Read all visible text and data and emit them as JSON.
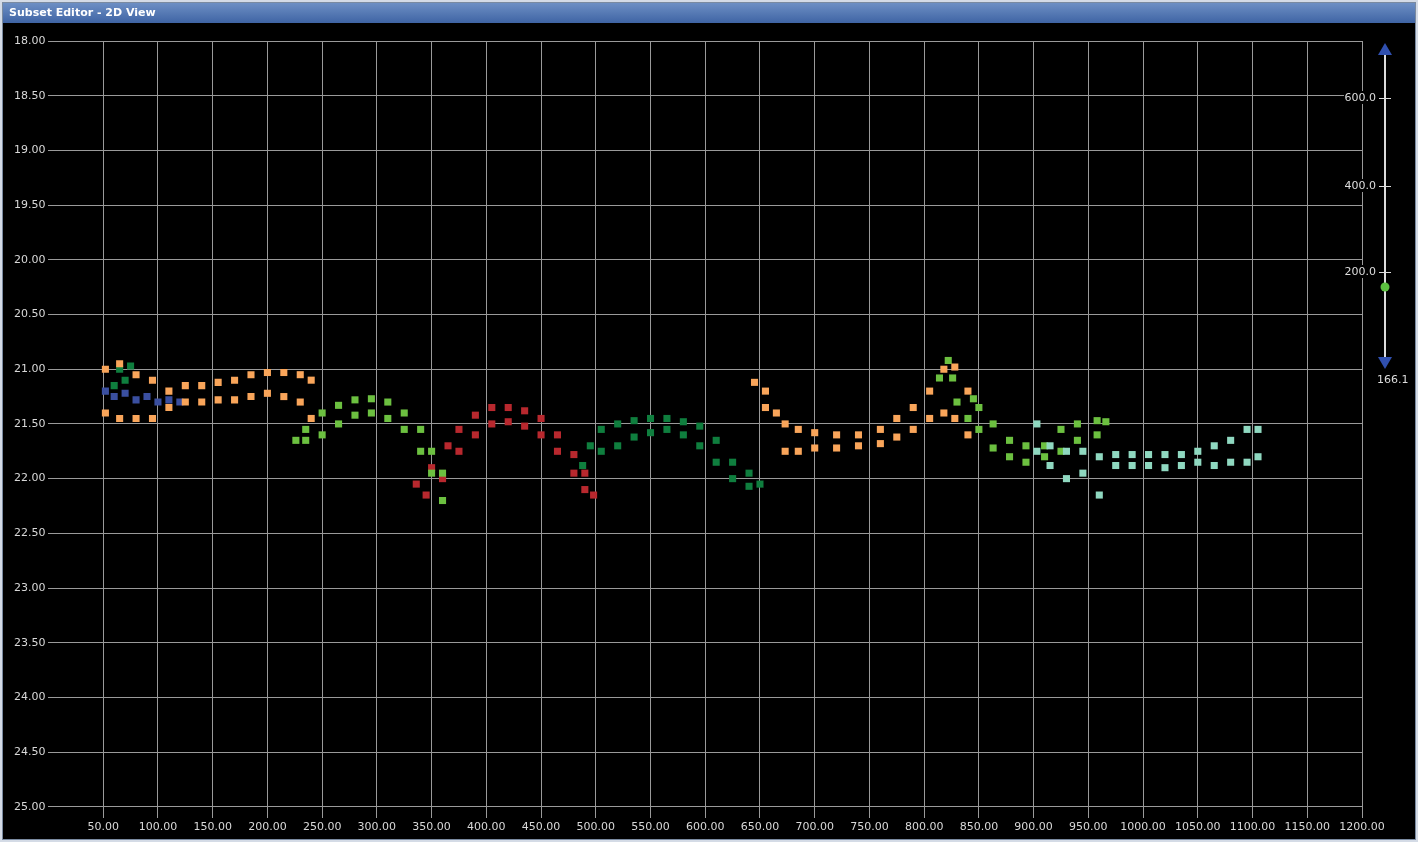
{
  "chart_data": {
    "type": "scatter",
    "title": "Subset Editor - 2D View",
    "xlim": [
      0,
      1200
    ],
    "ylim": [
      25.1,
      18
    ],
    "xticks": [
      {
        "value": 50,
        "label": "50.00"
      },
      {
        "value": 100,
        "label": "100.00"
      },
      {
        "value": 150,
        "label": "150.00"
      },
      {
        "value": 200,
        "label": "200.00"
      },
      {
        "value": 250,
        "label": "250.00"
      },
      {
        "value": 300,
        "label": "300.00"
      },
      {
        "value": 350,
        "label": "350.00"
      },
      {
        "value": 400,
        "label": "400.00"
      },
      {
        "value": 450,
        "label": "450.00"
      },
      {
        "value": 500,
        "label": "500.00"
      },
      {
        "value": 550,
        "label": "550.00"
      },
      {
        "value": 600,
        "label": "600.00"
      },
      {
        "value": 650,
        "label": "650.00"
      },
      {
        "value": 700,
        "label": "700.00"
      },
      {
        "value": 750,
        "label": "750.00"
      },
      {
        "value": 800,
        "label": "800.00"
      },
      {
        "value": 850,
        "label": "850.00"
      },
      {
        "value": 900,
        "label": "900.00"
      },
      {
        "value": 950,
        "label": "950.00"
      },
      {
        "value": 1000,
        "label": "1000.00"
      },
      {
        "value": 1050,
        "label": "1050.00"
      },
      {
        "value": 1100,
        "label": "1100.00"
      },
      {
        "value": 1150,
        "label": "1150.00"
      },
      {
        "value": 1200,
        "label": "1200.00"
      }
    ],
    "yticks": [
      {
        "value": 18,
        "label": "18.00"
      },
      {
        "value": 18.5,
        "label": "18.50"
      },
      {
        "value": 19,
        "label": "19.00"
      },
      {
        "value": 19.5,
        "label": "19.50"
      },
      {
        "value": 20,
        "label": "20.00"
      },
      {
        "value": 20.5,
        "label": "20.50"
      },
      {
        "value": 21,
        "label": "21.00"
      },
      {
        "value": 21.5,
        "label": "21.50"
      },
      {
        "value": 22,
        "label": "22.00"
      },
      {
        "value": 22.5,
        "label": "22.50"
      },
      {
        "value": 23,
        "label": "23.00"
      },
      {
        "value": 23.5,
        "label": "23.50"
      },
      {
        "value": 24,
        "label": "24.00"
      },
      {
        "value": 24.5,
        "label": "24.50"
      },
      {
        "value": 25,
        "label": "25.00"
      }
    ],
    "grid": true,
    "legend": false,
    "marker": "square",
    "annotations": [
      "600.0",
      "400.0",
      "200.0",
      "166.1"
    ],
    "series": [
      {
        "color": "#8fd8c0",
        "x": [
          903,
          903,
          915,
          915,
          930,
          930,
          945,
          945,
          960,
          960,
          975,
          975,
          990,
          990,
          1005,
          1005,
          1020,
          1020,
          1035,
          1035,
          1050,
          1050,
          1065,
          1065,
          1080,
          1080,
          1095,
          1095,
          1105,
          1105
        ],
        "values": [
          21.5,
          21.75,
          21.7,
          21.88,
          21.75,
          22.0,
          21.75,
          21.95,
          21.8,
          22.15,
          21.78,
          21.88,
          21.78,
          21.88,
          21.78,
          21.88,
          21.78,
          21.9,
          21.78,
          21.88,
          21.75,
          21.85,
          21.7,
          21.88,
          21.65,
          21.85,
          21.55,
          21.85,
          21.55,
          21.8
        ]
      },
      {
        "color": "#f9a55a",
        "x": [
          52,
          52,
          65,
          65,
          80,
          80,
          95,
          95,
          110,
          110,
          125,
          125,
          140,
          140,
          155,
          155,
          170,
          170,
          185,
          185,
          200,
          200,
          215,
          215,
          230,
          230,
          240,
          240,
          645,
          655,
          655,
          665,
          673,
          673,
          685,
          685,
          700,
          700,
          720,
          720,
          740,
          740,
          760,
          760,
          775,
          775,
          790,
          790,
          805,
          805,
          818,
          818,
          828,
          828,
          840,
          840
        ],
        "values": [
          21.0,
          21.4,
          20.95,
          21.45,
          21.05,
          21.45,
          21.1,
          21.45,
          21.2,
          21.35,
          21.15,
          21.3,
          21.15,
          21.3,
          21.12,
          21.28,
          21.1,
          21.28,
          21.05,
          21.25,
          21.03,
          21.22,
          21.03,
          21.25,
          21.05,
          21.3,
          21.1,
          21.45,
          21.12,
          21.2,
          21.35,
          21.4,
          21.5,
          21.75,
          21.55,
          21.75,
          21.58,
          21.72,
          21.6,
          21.72,
          21.6,
          21.7,
          21.55,
          21.68,
          21.45,
          21.62,
          21.35,
          21.55,
          21.2,
          21.45,
          21.0,
          21.4,
          20.98,
          21.45,
          21.2,
          21.6
        ]
      },
      {
        "color": "#3a4fa0",
        "x": [
          52,
          60,
          70,
          80,
          90,
          100,
          110,
          120
        ],
        "values": [
          21.2,
          21.25,
          21.22,
          21.28,
          21.25,
          21.3,
          21.28,
          21.3
        ]
      },
      {
        "color": "#6cc040",
        "x": [
          226,
          235,
          235,
          250,
          250,
          265,
          265,
          280,
          280,
          295,
          295,
          310,
          310,
          325,
          325,
          340,
          340,
          350,
          350,
          360,
          360,
          814,
          822,
          826,
          830,
          845,
          840,
          850,
          850,
          863,
          863,
          878,
          878,
          893,
          893,
          910,
          910,
          925,
          925,
          940,
          940,
          958,
          958,
          966
        ],
        "values": [
          21.65,
          21.55,
          21.65,
          21.4,
          21.6,
          21.33,
          21.5,
          21.28,
          21.42,
          21.27,
          21.4,
          21.3,
          21.45,
          21.4,
          21.55,
          21.55,
          21.75,
          21.75,
          21.95,
          21.95,
          22.2,
          21.08,
          20.92,
          21.08,
          21.3,
          21.27,
          21.45,
          21.35,
          21.55,
          21.5,
          21.72,
          21.65,
          21.8,
          21.7,
          21.85,
          21.7,
          21.8,
          21.55,
          21.75,
          21.5,
          21.65,
          21.47,
          21.6,
          21.48
        ]
      },
      {
        "color": "#b8282e",
        "x": [
          336,
          345,
          350,
          360,
          365,
          375,
          375,
          390,
          390,
          405,
          405,
          420,
          420,
          435,
          435,
          450,
          450,
          465,
          465,
          480,
          480,
          490,
          490,
          498
        ],
        "values": [
          22.05,
          22.15,
          21.9,
          22.0,
          21.7,
          21.55,
          21.75,
          21.42,
          21.6,
          21.35,
          21.5,
          21.35,
          21.48,
          21.38,
          21.52,
          21.45,
          21.6,
          21.6,
          21.75,
          21.78,
          21.95,
          21.95,
          22.1,
          22.15
        ]
      },
      {
        "color": "#0f7e3e",
        "x": [
          60,
          65,
          70,
          75,
          488,
          495,
          505,
          505,
          520,
          520,
          535,
          535,
          550,
          550,
          565,
          565,
          580,
          580,
          595,
          595,
          610,
          610,
          625,
          625,
          640,
          640,
          650
        ],
        "values": [
          21.15,
          21.0,
          21.1,
          20.97,
          21.88,
          21.7,
          21.55,
          21.75,
          21.5,
          21.7,
          21.47,
          21.62,
          21.45,
          21.58,
          21.45,
          21.55,
          21.48,
          21.6,
          21.52,
          21.7,
          21.65,
          21.85,
          21.85,
          22.0,
          21.95,
          22.07,
          22.05
        ]
      }
    ]
  }
}
